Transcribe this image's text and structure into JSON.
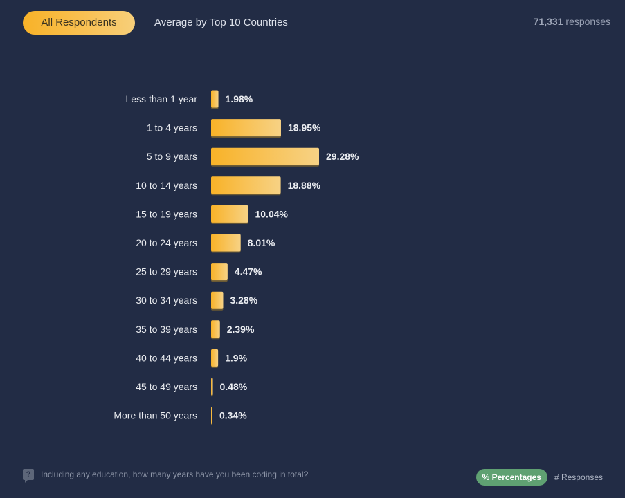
{
  "tabs": [
    {
      "label": "All Respondents",
      "active": true
    },
    {
      "label": "Average by Top 10 Countries",
      "active": false
    }
  ],
  "responses": {
    "count": "71,331",
    "suffix": "responses"
  },
  "question": "Including any education, how many years have you been coding in total?",
  "toggles": {
    "percentages": "% Percentages",
    "responses": "# Responses"
  },
  "colors": {
    "background": "#222c45",
    "bar_start": "#f8b228",
    "bar_end": "#f7d285",
    "toggle_active": "#5fa172"
  },
  "chart_data": {
    "type": "bar",
    "orientation": "horizontal",
    "title": "",
    "xlabel": "",
    "ylabel": "",
    "categories": [
      "Less than 1 year",
      "1 to 4 years",
      "5 to 9 years",
      "10 to 14 years",
      "15 to 19 years",
      "20 to 24 years",
      "25 to 29 years",
      "30 to 34 years",
      "35 to 39 years",
      "40 to 44 years",
      "45 to 49 years",
      "More than 50 years"
    ],
    "values": [
      1.98,
      18.95,
      29.28,
      18.88,
      10.04,
      8.01,
      4.47,
      3.28,
      2.39,
      1.9,
      0.48,
      0.34
    ],
    "value_labels": [
      "1.98%",
      "18.95%",
      "29.28%",
      "18.88%",
      "10.04%",
      "8.01%",
      "4.47%",
      "3.28%",
      "2.39%",
      "1.9%",
      "0.48%",
      "0.34%"
    ],
    "unit": "%",
    "grid": false,
    "legend": "none"
  }
}
